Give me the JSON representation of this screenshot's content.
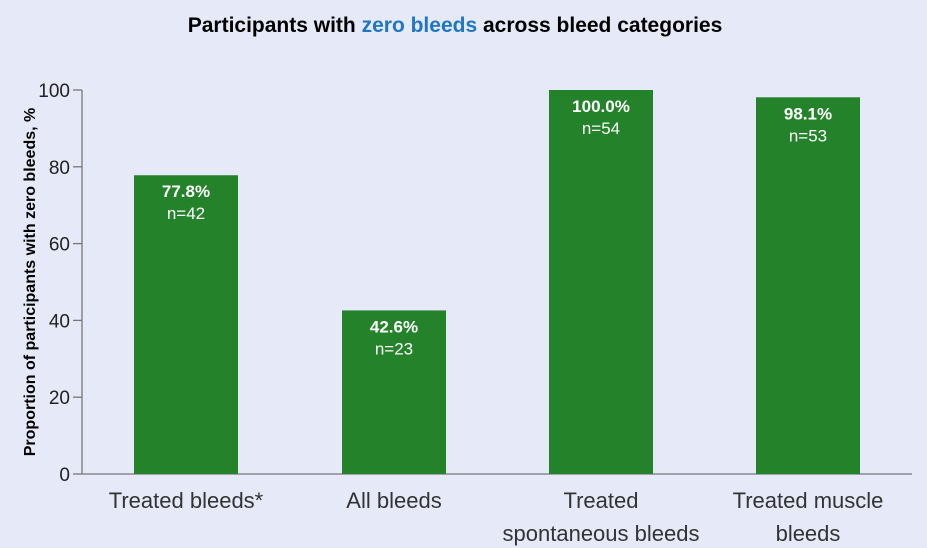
{
  "title": {
    "prefix": "Participants with ",
    "highlight": "zero bleeds",
    "suffix": " across bleed categories",
    "highlight_color": "#1f77c4"
  },
  "chart_data": {
    "type": "bar",
    "title": "Participants with zero bleeds across bleed categories",
    "ylabel": "Proportion of participants with zero bleeds, %",
    "xlabel": "",
    "ylim": [
      0,
      100
    ],
    "yticks": [
      0,
      20,
      40,
      60,
      80,
      100
    ],
    "grid": false,
    "bar_color": "#23822a",
    "categories": [
      [
        "Treated bleeds*"
      ],
      [
        "All bleeds"
      ],
      [
        "Treated",
        "spontaneous bleeds"
      ],
      [
        "Treated muscle",
        "bleeds"
      ]
    ],
    "values": [
      77.8,
      42.6,
      100.0,
      98.1
    ],
    "value_labels": [
      "77.8%",
      "42.6%",
      "100.0%",
      "98.1%"
    ],
    "n_labels": [
      "n=42",
      "n=23",
      "n=54",
      "n=53"
    ]
  }
}
